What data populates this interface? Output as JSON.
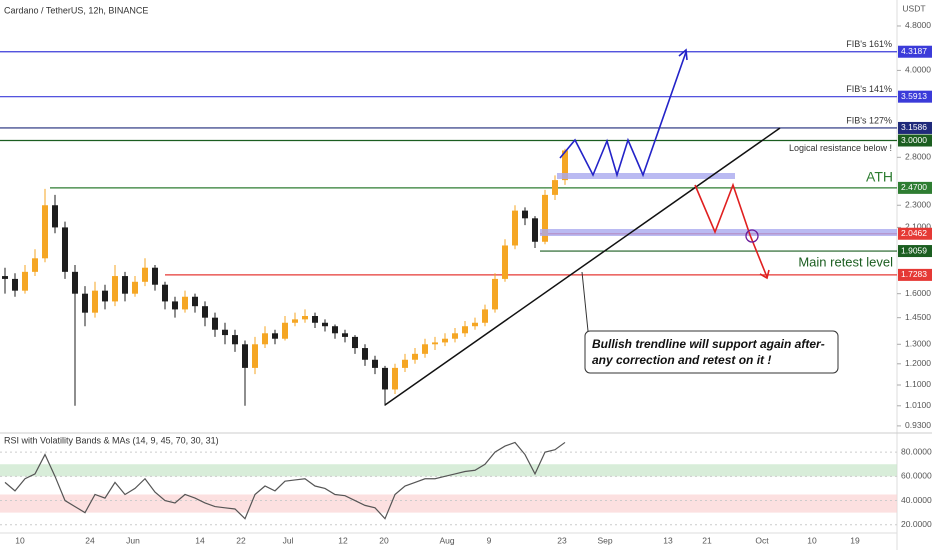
{
  "chart_data": {
    "type": "candlestick",
    "title": "Cardano / TetherUS, 12h, BINANCE",
    "currency": "USDT",
    "log": true,
    "ylim": [
      0.907,
      5.34
    ],
    "yticks": [
      {
        "value": 4.8,
        "label": "4.8000"
      },
      {
        "value": 4.0,
        "label": "4.0000"
      },
      {
        "value": 2.8,
        "label": "2.8000"
      },
      {
        "value": 2.3,
        "label": "2.3000"
      },
      {
        "value": 2.1,
        "label": "2.1000"
      },
      {
        "value": 1.6,
        "label": "1.6000"
      },
      {
        "value": 1.45,
        "label": "1.4500"
      },
      {
        "value": 1.3,
        "label": "1.3000"
      },
      {
        "value": 1.2,
        "label": "1.2000"
      },
      {
        "value": 1.1,
        "label": "1.1000"
      },
      {
        "value": 1.01,
        "label": "1.0100"
      },
      {
        "value": 0.93,
        "label": "0.9300"
      }
    ],
    "xticks": [
      "10",
      "24",
      "Jun",
      "14",
      "22",
      "Jul",
      "12",
      "20",
      "Aug",
      "9",
      "23",
      "Sep",
      "13",
      "21",
      "Oct",
      "10",
      "19"
    ],
    "up_color": "#f5a623",
    "down_color": "#1e1e1e",
    "ohlc": [
      [
        1.72,
        1.78,
        1.6,
        1.7
      ],
      [
        1.7,
        1.74,
        1.58,
        1.62
      ],
      [
        1.62,
        1.8,
        1.6,
        1.75
      ],
      [
        1.75,
        1.92,
        1.72,
        1.85
      ],
      [
        1.85,
        2.46,
        1.82,
        2.3
      ],
      [
        2.3,
        2.4,
        2.05,
        2.1
      ],
      [
        2.1,
        2.15,
        1.7,
        1.75
      ],
      [
        1.75,
        1.8,
        1.01,
        1.6
      ],
      [
        1.6,
        1.65,
        1.4,
        1.48
      ],
      [
        1.48,
        1.68,
        1.45,
        1.62
      ],
      [
        1.62,
        1.66,
        1.5,
        1.55
      ],
      [
        1.55,
        1.8,
        1.52,
        1.72
      ],
      [
        1.72,
        1.75,
        1.55,
        1.6
      ],
      [
        1.6,
        1.72,
        1.58,
        1.68
      ],
      [
        1.68,
        1.85,
        1.65,
        1.78
      ],
      [
        1.78,
        1.8,
        1.62,
        1.66
      ],
      [
        1.66,
        1.68,
        1.5,
        1.55
      ],
      [
        1.55,
        1.58,
        1.45,
        1.5
      ],
      [
        1.5,
        1.62,
        1.48,
        1.58
      ],
      [
        1.58,
        1.6,
        1.48,
        1.52
      ],
      [
        1.52,
        1.55,
        1.4,
        1.45
      ],
      [
        1.45,
        1.48,
        1.34,
        1.38
      ],
      [
        1.38,
        1.42,
        1.3,
        1.35
      ],
      [
        1.35,
        1.38,
        1.26,
        1.3
      ],
      [
        1.3,
        1.32,
        1.01,
        1.18
      ],
      [
        1.18,
        1.34,
        1.15,
        1.3
      ],
      [
        1.3,
        1.4,
        1.28,
        1.36
      ],
      [
        1.36,
        1.38,
        1.3,
        1.33
      ],
      [
        1.33,
        1.46,
        1.32,
        1.42
      ],
      [
        1.42,
        1.48,
        1.4,
        1.44
      ],
      [
        1.44,
        1.5,
        1.42,
        1.46
      ],
      [
        1.46,
        1.48,
        1.39,
        1.42
      ],
      [
        1.42,
        1.44,
        1.37,
        1.4
      ],
      [
        1.4,
        1.41,
        1.33,
        1.36
      ],
      [
        1.36,
        1.38,
        1.31,
        1.34
      ],
      [
        1.34,
        1.35,
        1.25,
        1.28
      ],
      [
        1.28,
        1.3,
        1.19,
        1.22
      ],
      [
        1.22,
        1.24,
        1.15,
        1.18
      ],
      [
        1.18,
        1.19,
        1.01,
        1.08
      ],
      [
        1.08,
        1.2,
        1.06,
        1.18
      ],
      [
        1.18,
        1.25,
        1.16,
        1.22
      ],
      [
        1.22,
        1.28,
        1.2,
        1.25
      ],
      [
        1.25,
        1.33,
        1.23,
        1.3
      ],
      [
        1.3,
        1.34,
        1.27,
        1.31
      ],
      [
        1.31,
        1.36,
        1.29,
        1.33
      ],
      [
        1.33,
        1.39,
        1.31,
        1.36
      ],
      [
        1.36,
        1.43,
        1.34,
        1.4
      ],
      [
        1.4,
        1.45,
        1.38,
        1.42
      ],
      [
        1.42,
        1.53,
        1.4,
        1.5
      ],
      [
        1.5,
        1.74,
        1.48,
        1.7
      ],
      [
        1.7,
        2.0,
        1.68,
        1.95
      ],
      [
        1.95,
        2.3,
        1.92,
        2.25
      ],
      [
        2.25,
        2.28,
        2.12,
        2.18
      ],
      [
        2.18,
        2.2,
        1.93,
        1.98
      ],
      [
        1.98,
        2.45,
        1.96,
        2.4
      ],
      [
        2.4,
        2.6,
        2.35,
        2.55
      ],
      [
        2.55,
        2.9,
        2.5,
        2.88
      ]
    ],
    "levels": [
      {
        "value": 4.3187,
        "label": "4.3187",
        "name": "FIB's 161%",
        "color": "#3b3bd9"
      },
      {
        "value": 3.5913,
        "label": "3.5913",
        "name": "FIB's 141%",
        "color": "#3b3bd9"
      },
      {
        "value": 3.1586,
        "label": "3.1586",
        "name": "FIB's 127%",
        "color": "#1f2a7a"
      },
      {
        "value": 3.0,
        "label": "3.0000",
        "name": "Logical resistance below !",
        "color": "#1b5e20"
      },
      {
        "value": 2.47,
        "label": "2.4700",
        "name": "ATH",
        "color": "#2e7d32"
      },
      {
        "value": 2.0462,
        "label": "2.0462",
        "color": "#e53935"
      },
      {
        "value": 1.9059,
        "label": "1.9059",
        "name": "Main retest level",
        "color": "#1b5e20"
      },
      {
        "value": 1.7283,
        "label": "1.7283",
        "color": "#e53935"
      }
    ],
    "callout": [
      "Bullish trendline will support again after-",
      "any correction and retest on it !"
    ],
    "rsi": {
      "title": "RSI with Volatility Bands & MAs (14, 9, 45, 70, 30, 31)",
      "color": "#555",
      "ylim": [
        14,
        92.5
      ],
      "yticks": [
        {
          "value": 80,
          "label": "80.0000"
        },
        {
          "value": 60,
          "label": "60.0000"
        },
        {
          "value": 40,
          "label": "40.0000"
        },
        {
          "value": 20,
          "label": "20.0000"
        }
      ],
      "bands": [
        {
          "from": 60,
          "to": 70,
          "color": "#c8e6c9"
        },
        {
          "from": 30,
          "to": 45,
          "color": "#fbd3d3"
        }
      ],
      "values": [
        55,
        48,
        58,
        62,
        78,
        60,
        40,
        35,
        30,
        45,
        42,
        55,
        45,
        50,
        58,
        47,
        40,
        38,
        45,
        42,
        38,
        35,
        34,
        33,
        25,
        45,
        52,
        48,
        56,
        57,
        58,
        52,
        50,
        45,
        44,
        40,
        36,
        34,
        25,
        45,
        52,
        55,
        58,
        58,
        60,
        62,
        64,
        65,
        70,
        80,
        85,
        88,
        78,
        62,
        80,
        82,
        88
      ]
    }
  }
}
